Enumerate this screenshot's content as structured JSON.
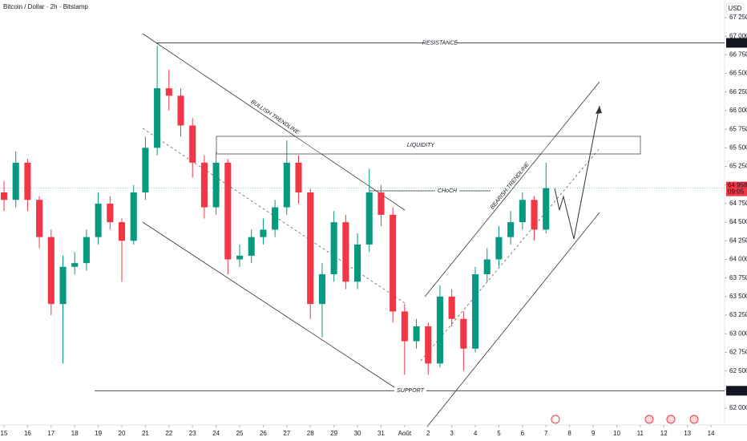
{
  "chart_data": {
    "type": "candlestick",
    "title": "Bitcoin / Dollar · 2h · Bitstamp",
    "currency": "USD",
    "up_color": "#089981",
    "down_color": "#f23645",
    "x": [
      0,
      0.5,
      1,
      1.5,
      2,
      2.5,
      3,
      3.5,
      4,
      4.5,
      5,
      5.5,
      6,
      6.5,
      7,
      7.5,
      8,
      8.5,
      9,
      9.5,
      10,
      10.5,
      11,
      11.5,
      12,
      12.5,
      13,
      13.5,
      14,
      14.5,
      15,
      15.5,
      16,
      16.5,
      17,
      17.5,
      18,
      18.5,
      19,
      19.5,
      20,
      20.5,
      21,
      21.5,
      22,
      22.5,
      23
    ],
    "open": [
      64900,
      64800,
      65300,
      64800,
      64300,
      63400,
      63900,
      63950,
      64300,
      64750,
      64500,
      64250,
      64900,
      65500,
      66300,
      66200,
      65800,
      65300,
      64700,
      65300,
      64000,
      64050,
      64300,
      64400,
      64700,
      65300,
      64900,
      63400,
      63800,
      64500,
      63700,
      64200,
      64900,
      64600,
      63300,
      62900,
      63100,
      62600,
      63500,
      63200,
      62800,
      63800,
      64000,
      64300,
      64500,
      64800,
      64400
    ],
    "high": [
      65050,
      65450,
      65350,
      64850,
      64400,
      64050,
      64100,
      64400,
      64900,
      64850,
      64550,
      65000,
      65650,
      66870,
      66550,
      66300,
      65900,
      65400,
      65450,
      65350,
      64200,
      64400,
      64550,
      64800,
      65600,
      65400,
      64950,
      63950,
      64650,
      64600,
      64350,
      65220,
      65000,
      64700,
      63400,
      63200,
      63150,
      63650,
      63600,
      63300,
      63900,
      64150,
      64450,
      64650,
      64900,
      64850,
      65300
    ],
    "low": [
      64650,
      64700,
      64650,
      64150,
      63250,
      62600,
      63800,
      63850,
      64200,
      64400,
      63700,
      64200,
      64800,
      65400,
      66000,
      65650,
      65100,
      64550,
      64600,
      63800,
      63900,
      63950,
      64200,
      64300,
      64600,
      64750,
      63200,
      62950,
      63700,
      63600,
      63600,
      64100,
      64450,
      63150,
      62450,
      62800,
      62450,
      62550,
      63100,
      62500,
      62750,
      63700,
      63900,
      64200,
      64400,
      64250,
      64350
    ],
    "close": [
      64800,
      65300,
      64800,
      64300,
      63400,
      63900,
      63950,
      64300,
      64750,
      64500,
      64250,
      64900,
      65500,
      66300,
      66200,
      65800,
      65300,
      64700,
      65300,
      64000,
      64050,
      64300,
      64400,
      64700,
      65300,
      64900,
      63400,
      63800,
      64500,
      63700,
      64200,
      64900,
      64600,
      63300,
      62900,
      63100,
      62600,
      63500,
      63200,
      62800,
      63800,
      64000,
      64300,
      64500,
      64800,
      64400,
      64958
    ],
    "xlim": [
      -0.17,
      30.44
    ],
    "ylim": [
      61774,
      67487
    ],
    "xticks": [
      {
        "value": 0,
        "label": "15"
      },
      {
        "value": 1,
        "label": "16"
      },
      {
        "value": 2,
        "label": "17"
      },
      {
        "value": 3,
        "label": "18"
      },
      {
        "value": 4,
        "label": "19"
      },
      {
        "value": 5,
        "label": "20"
      },
      {
        "value": 6,
        "label": "21"
      },
      {
        "value": 7,
        "label": "22"
      },
      {
        "value": 8,
        "label": "23"
      },
      {
        "value": 9,
        "label": "24"
      },
      {
        "value": 10,
        "label": "25"
      },
      {
        "value": 11,
        "label": "26"
      },
      {
        "value": 12,
        "label": "27"
      },
      {
        "value": 13,
        "label": "28"
      },
      {
        "value": 14,
        "label": "29"
      },
      {
        "value": 15,
        "label": "30"
      },
      {
        "value": 16,
        "label": "31"
      },
      {
        "value": 17,
        "label": "Août"
      },
      {
        "value": 18,
        "label": "2"
      },
      {
        "value": 19,
        "label": "3"
      },
      {
        "value": 20,
        "label": "4"
      },
      {
        "value": 21,
        "label": "5"
      },
      {
        "value": 22,
        "label": "6"
      },
      {
        "value": 23,
        "label": "7"
      },
      {
        "value": 24,
        "label": "8"
      },
      {
        "value": 25,
        "label": "9"
      },
      {
        "value": 26,
        "label": "10"
      },
      {
        "value": 27,
        "label": "11"
      },
      {
        "value": 28,
        "label": "12"
      },
      {
        "value": 29,
        "label": "13"
      },
      {
        "value": 30,
        "label": "14"
      }
    ],
    "yticks": [
      {
        "value": 62000,
        "label": "62 000"
      },
      {
        "value": 62250,
        "label": "62 250"
      },
      {
        "value": 62500,
        "label": "62 500"
      },
      {
        "value": 62750,
        "label": "62 750"
      },
      {
        "value": 63000,
        "label": "63 000"
      },
      {
        "value": 63250,
        "label": "63 250"
      },
      {
        "value": 63500,
        "label": "63 500"
      },
      {
        "value": 63750,
        "label": "63 750"
      },
      {
        "value": 64000,
        "label": "64 000"
      },
      {
        "value": 64250,
        "label": "64 250"
      },
      {
        "value": 64500,
        "label": "64 500"
      },
      {
        "value": 64750,
        "label": "64 750"
      },
      {
        "value": 65000,
        "label": "65 000"
      },
      {
        "value": 65250,
        "label": "65 250"
      },
      {
        "value": 65500,
        "label": "65 500"
      },
      {
        "value": 65750,
        "label": "65 750"
      },
      {
        "value": 66000,
        "label": "66 000"
      },
      {
        "value": 66250,
        "label": "66 250"
      },
      {
        "value": 66500,
        "label": "66 500"
      },
      {
        "value": 66750,
        "label": "66 750"
      },
      {
        "value": 67000,
        "label": "67 000"
      },
      {
        "value": 67250,
        "label": "67 250"
      }
    ],
    "resistance": {
      "text": "RESISTANCE",
      "value": 66911,
      "value_label": "66 911"
    },
    "support": {
      "text": "SUPPORT",
      "value": 62234,
      "value_label": "62 234"
    },
    "last_price": {
      "value": 64958,
      "value_label": "64 958",
      "countdown": "09:05"
    },
    "liquidity": "LIQUIDITY",
    "bullish_trendline": "BULLISH TRENDLINE",
    "choch": "CHoCH",
    "bearish_trendline": "BEARISH TRENDLINE"
  }
}
